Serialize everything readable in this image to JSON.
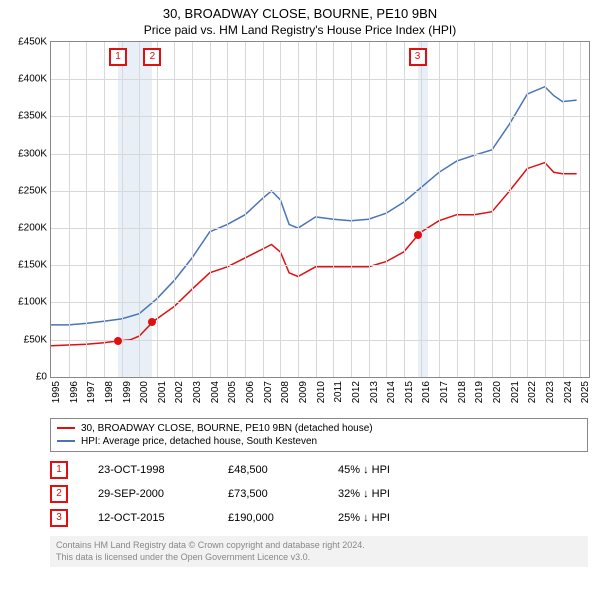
{
  "title": "30, BROADWAY CLOSE, BOURNE, PE10 9BN",
  "subtitle": "Price paid vs. HM Land Registry's House Price Index (HPI)",
  "chart": {
    "type": "line",
    "background_color": "#ffffff",
    "grid_color": "#d8d8d8",
    "title_fontsize": 13,
    "label_fontsize": 10,
    "x_years": [
      1995,
      1996,
      1997,
      1998,
      1999,
      2000,
      2001,
      2002,
      2003,
      2004,
      2005,
      2006,
      2007,
      2008,
      2009,
      2010,
      2011,
      2012,
      2013,
      2014,
      2015,
      2016,
      2017,
      2018,
      2019,
      2020,
      2021,
      2022,
      2023,
      2024,
      2025
    ],
    "xlim": [
      1995,
      2025.5
    ],
    "ylim": [
      0,
      450000
    ],
    "ytick_step": 50000,
    "ytick_labels": [
      "£0",
      "£50K",
      "£100K",
      "£150K",
      "£200K",
      "£250K",
      "£300K",
      "£350K",
      "£400K",
      "£450K"
    ],
    "series": [
      {
        "name": "property",
        "color": "#e01010",
        "line_width": 1.5,
        "x": [
          1995,
          1996,
          1997,
          1998,
          1998.8,
          1999.5,
          2000,
          2000.75,
          2001,
          2002,
          2003,
          2004,
          2005,
          2006,
          2007,
          2007.5,
          2008,
          2008.5,
          2009,
          2010,
          2011,
          2012,
          2013,
          2014,
          2015,
          2015.78,
          2016,
          2017,
          2018,
          2019,
          2020,
          2021,
          2022,
          2023,
          2023.5,
          2024,
          2024.8
        ],
        "y": [
          42,
          43,
          44,
          46,
          48.5,
          50,
          55,
          73.5,
          78,
          95,
          118,
          140,
          148,
          160,
          172,
          178,
          168,
          140,
          135,
          148,
          148,
          148,
          148,
          155,
          168,
          190,
          195,
          210,
          218,
          218,
          222,
          250,
          280,
          288,
          275,
          273,
          273
        ]
      },
      {
        "name": "hpi",
        "color": "#4a74b8",
        "line_width": 1.5,
        "x": [
          1995,
          1996,
          1997,
          1998,
          1999,
          2000,
          2001,
          2002,
          2003,
          2004,
          2005,
          2006,
          2007,
          2007.5,
          2008,
          2008.5,
          2009,
          2010,
          2011,
          2012,
          2013,
          2014,
          2015,
          2016,
          2017,
          2018,
          2019,
          2020,
          2021,
          2022,
          2023,
          2023.5,
          2024,
          2024.8
        ],
        "y": [
          70,
          70,
          72,
          75,
          78,
          85,
          105,
          130,
          160,
          195,
          205,
          218,
          240,
          250,
          238,
          205,
          200,
          215,
          212,
          210,
          212,
          220,
          235,
          255,
          275,
          290,
          298,
          305,
          340,
          380,
          390,
          378,
          370,
          372
        ]
      }
    ],
    "shaded_ranges": [
      {
        "x0": 1998.8,
        "x1": 2000.75,
        "color": "#d8e4f1"
      },
      {
        "x0": 2015.78,
        "x1": 2016.4,
        "color": "#d8e4f1"
      }
    ],
    "chart_markers": [
      {
        "n": "1",
        "x": 1998.8,
        "y": 48.5
      },
      {
        "n": "2",
        "x": 2000.75,
        "y": 73.5
      },
      {
        "n": "3",
        "x": 2015.78,
        "y": 190
      }
    ]
  },
  "legend": [
    {
      "color": "#e01010",
      "label": "30, BROADWAY CLOSE, BOURNE, PE10 9BN (detached house)"
    },
    {
      "color": "#4a74b8",
      "label": "HPI: Average price, detached house, South Kesteven"
    }
  ],
  "sales": [
    {
      "n": "1",
      "date": "23-OCT-1998",
      "price": "£48,500",
      "delta": "45% ↓ HPI"
    },
    {
      "n": "2",
      "date": "29-SEP-2000",
      "price": "£73,500",
      "delta": "32% ↓ HPI"
    },
    {
      "n": "3",
      "date": "12-OCT-2015",
      "price": "£190,000",
      "delta": "25% ↓ HPI"
    }
  ],
  "footer_line1": "Contains HM Land Registry data © Crown copyright and database right 2024.",
  "footer_line2": "This data is licensed under the Open Government Licence v3.0."
}
